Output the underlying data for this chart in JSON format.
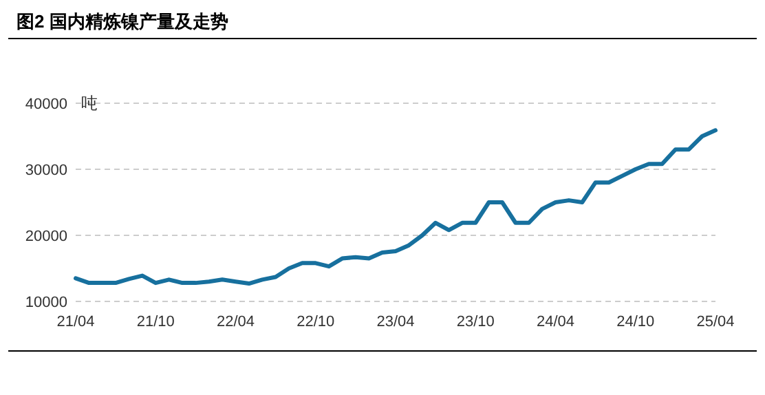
{
  "chart_data": {
    "type": "line",
    "title": "图2 国内精炼镍产量及走势",
    "ylabel": "吨",
    "categories": [
      "21/04",
      null,
      null,
      null,
      null,
      null,
      "21/10",
      null,
      null,
      null,
      null,
      null,
      "22/04",
      null,
      null,
      null,
      null,
      null,
      "22/10",
      null,
      null,
      null,
      null,
      null,
      "23/04",
      null,
      null,
      null,
      null,
      null,
      "23/10",
      null,
      null,
      null,
      null,
      null,
      "24/04",
      null,
      null,
      null,
      null,
      null,
      "24/10",
      null,
      null,
      null,
      null,
      null,
      "25/04"
    ],
    "series": [
      {
        "color": "#17709e",
        "values": [
          13500,
          12800,
          12800,
          12800,
          13400,
          13900,
          12800,
          13300,
          12800,
          12800,
          13000,
          13300,
          13000,
          12700,
          13300,
          13700,
          15000,
          15800,
          15800,
          15300,
          16500,
          16700,
          16500,
          17400,
          17600,
          18500,
          20000,
          21900,
          20800,
          21900,
          21900,
          25000,
          25000,
          21900,
          21900,
          24000,
          25000,
          25300,
          25000,
          28000,
          28000,
          29000,
          30000,
          30800,
          30800,
          33000,
          33000,
          35000,
          35900
        ]
      }
    ],
    "ylim": [
      10000,
      40000
    ],
    "yticks": [
      10000,
      20000,
      30000,
      40000
    ],
    "grid": "y",
    "line_style": "solid",
    "marker": "none"
  }
}
